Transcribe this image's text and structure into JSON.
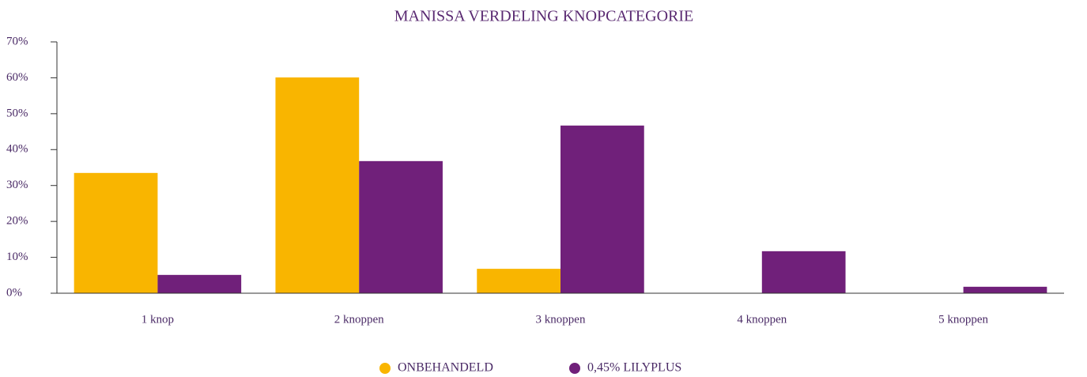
{
  "chart_data": {
    "type": "bar",
    "title": "MANISSA VERDELING KNOPCATEGORIE",
    "categories": [
      "1 knop",
      "2 knoppen",
      "3 knoppen",
      "4 knoppen",
      "5 knoppen"
    ],
    "series": [
      {
        "name": "ONBEHANDELD",
        "color": "#f9b500",
        "values": [
          33.5,
          60.1,
          6.8,
          0,
          0
        ]
      },
      {
        "name": "0,45% LILYPLUS",
        "color": "#70207a",
        "values": [
          5.1,
          36.8,
          46.7,
          11.7,
          1.8
        ]
      }
    ],
    "ylim": [
      0,
      70
    ],
    "yticks": [
      {
        "value": 0,
        "label": "0%"
      },
      {
        "value": 10,
        "label": "10%"
      },
      {
        "value": 20,
        "label": "20%"
      },
      {
        "value": 30,
        "label": "30%"
      },
      {
        "value": 40,
        "label": "40%"
      },
      {
        "value": 50,
        "label": "50%"
      },
      {
        "value": 60,
        "label": "60%"
      },
      {
        "value": 70,
        "label": "70%"
      }
    ],
    "grid": false,
    "legend": "bottom"
  }
}
